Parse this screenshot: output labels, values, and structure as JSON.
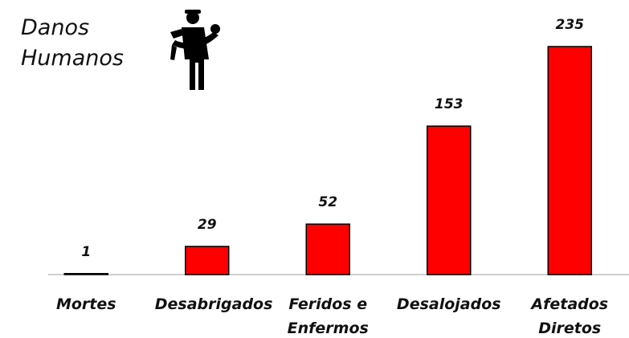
{
  "chart_data": {
    "type": "bar",
    "title": "Danos Humanos",
    "categories": [
      "Mortes",
      "Desabrigados",
      "Feridos e Enfermos",
      "Desalojados",
      "Afetados Diretos"
    ],
    "values": [
      1,
      29,
      52,
      153,
      235
    ],
    "color": "#ff0000"
  }
}
